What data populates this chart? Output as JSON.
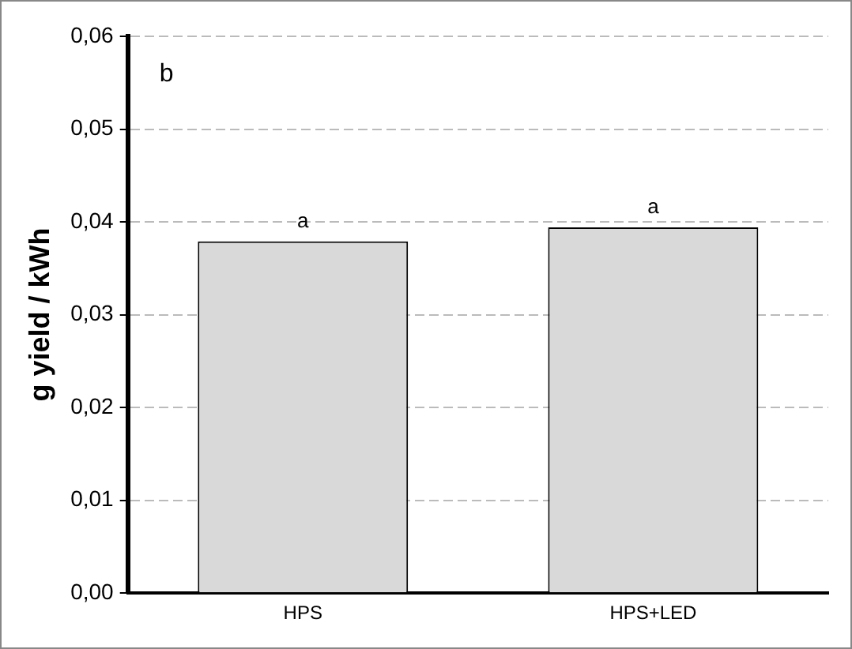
{
  "chart_data": {
    "type": "bar",
    "ylabel": "g yield / kWh",
    "categories": [
      "HPS",
      "HPS+LED"
    ],
    "values": [
      0.0379,
      0.0394
    ],
    "color": "#d9d9d9",
    "ylim": [
      0,
      0.06
    ],
    "yticks": [
      {
        "value": 0,
        "label": "0,00"
      },
      {
        "value": 0.01,
        "label": "0,01"
      },
      {
        "value": 0.02,
        "label": "0,02"
      },
      {
        "value": 0.03,
        "label": "0,03"
      },
      {
        "value": 0.04,
        "label": "0,04"
      },
      {
        "value": 0.05,
        "label": "0,05"
      },
      {
        "value": 0.06,
        "label": "0,06"
      }
    ],
    "grid": "y",
    "legend": false,
    "annotations": [
      "b",
      {
        "text": "a",
        "x": "HPS",
        "y": 0.0379
      },
      {
        "text": "a",
        "x": "HPS+LED",
        "y": 0.0394
      }
    ]
  }
}
